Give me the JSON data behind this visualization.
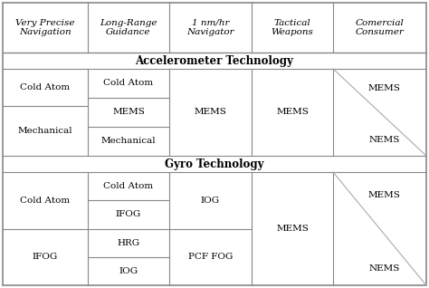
{
  "figsize": [
    4.74,
    3.18
  ],
  "dpi": 100,
  "bg_color": "#ffffff",
  "line_color": "#888888",
  "text_color": "#000000",
  "header_labels": [
    "Very Precise\nNavigation",
    "Long-Range\nGuidance",
    "1 nm/hr\nNavigator",
    "Tactical\nWeapons",
    "Comercial\nConsumer"
  ],
  "section_labels": [
    "Accelerometer Technology",
    "Gyro Technology"
  ],
  "accel_col1": [
    "Cold Atom",
    "MEMS",
    "Mechanical"
  ],
  "accel_col2": "MEMS",
  "accel_col3": "MEMS",
  "accel_col4_top": "MEMS",
  "accel_col4_bot": "NEMS",
  "gyro_col0": [
    "Cold Atom",
    "IFOG"
  ],
  "gyro_col1": [
    "Cold Atom",
    "IFOG",
    "HRG",
    "IOG"
  ],
  "gyro_col2_top": "IOG",
  "gyro_col2_bot": "PCF FOG",
  "gyro_col3": "MEMS",
  "gyro_col4_top": "MEMS",
  "gyro_col4_bot": "NEMS",
  "font_family": "serif",
  "header_fontsize": 7.5,
  "body_fontsize": 7.5,
  "section_fontsize": 8.5
}
